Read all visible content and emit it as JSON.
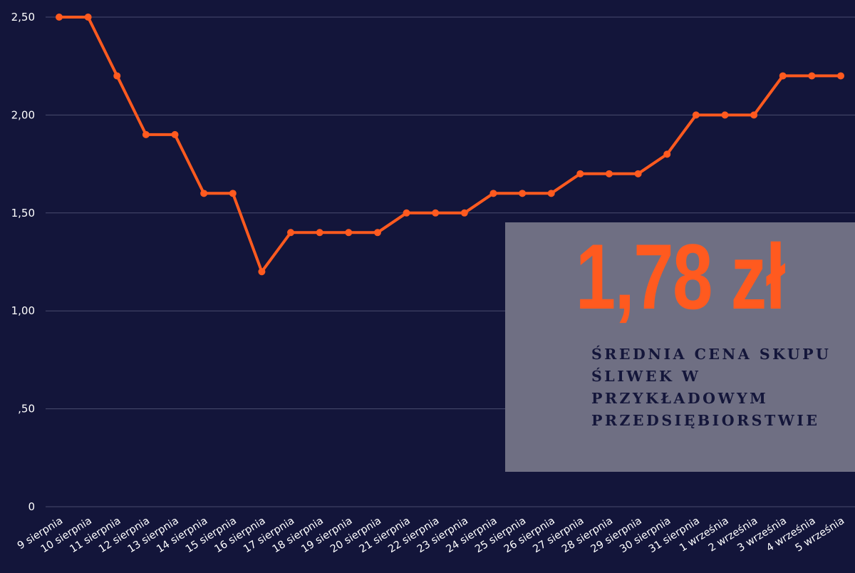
{
  "chart_data": {
    "type": "line",
    "x": [
      "9 sierpnia",
      "10 sierpnia",
      "11 sierpnia",
      "12 sierpnia",
      "13 sierpnia",
      "14 sierpnia",
      "15 sierpnia",
      "16 sierpnia",
      "17 sierpnia",
      "18 sierpnia",
      "19 sierpnia",
      "20 sierpnia",
      "21 sierpnia",
      "22 sierpnia",
      "23 sierpnia",
      "24 sierpnia",
      "25 sierpnia",
      "26 sierpnia",
      "27 sierpnia",
      "28 sierpnia",
      "29 sierpnia",
      "30 sierpnia",
      "31 sierpnia",
      "1 września",
      "2 września",
      "3 września",
      "4 września",
      "5 września"
    ],
    "series": [
      {
        "values": [
          250,
          250,
          220,
          190,
          190,
          160,
          160,
          120,
          140,
          140,
          140,
          140,
          150,
          150,
          150,
          160,
          160,
          160,
          170,
          170,
          170,
          180,
          200,
          200,
          200,
          220,
          220,
          220
        ]
      }
    ],
    "yticks": [
      0,
      50,
      100,
      150,
      200,
      250
    ],
    "ytick_labels": [
      "0",
      ",50",
      "1,00",
      "1,50",
      "2,00",
      "2,50"
    ],
    "ylim": [
      0,
      250
    ],
    "grid": true,
    "line_color": "#ff5a1f",
    "background_color": "#13153a",
    "gridline_color": "#4a4c6e",
    "text_color": "#ffffff"
  },
  "callout": {
    "value": "1,78 zł",
    "caption": "ŚREDNIA CENA SKUPU ŚLIWEK W PRZYKŁADOWYM PRZEDSIĘBIORSTWIE",
    "box_color": "#6f6f83",
    "value_color": "#ff5a1f",
    "caption_color": "#14163a"
  }
}
